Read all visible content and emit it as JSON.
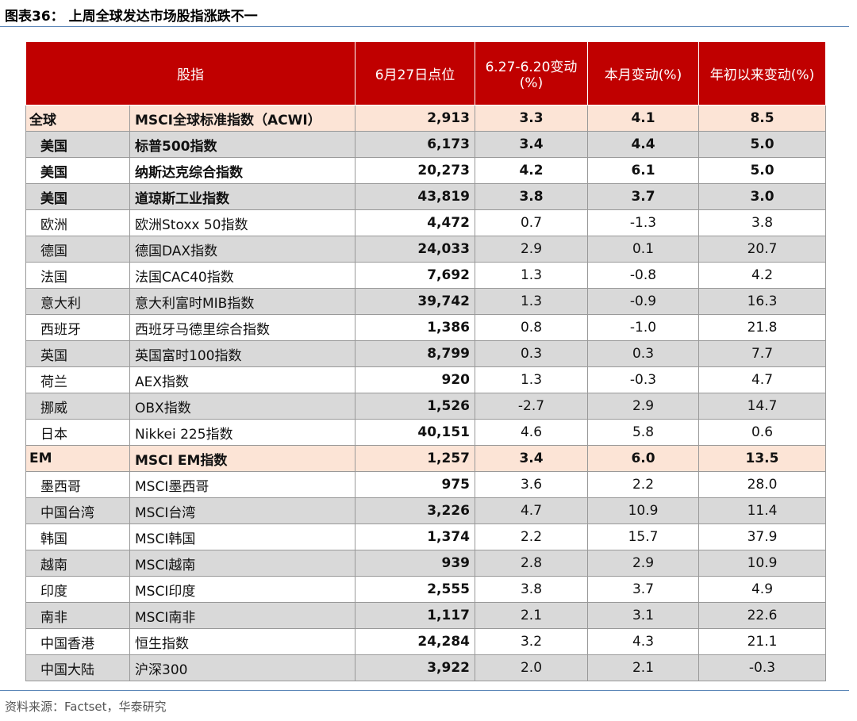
{
  "header": {
    "title": "图表36：  上周全球发达市场股指涨跌不一"
  },
  "table": {
    "columns": [
      "股指",
      "6月27日点位",
      "6.27-6.20变动 (%)",
      "本月变动(%)",
      "年初以来变动(%)"
    ],
    "rows": [
      [
        "全球",
        "MSCI全球标准指数（ACWI）",
        "2,913",
        "3.3",
        "4.1",
        "8.5"
      ],
      [
        "美国",
        "标普500指数",
        "6,173",
        "3.4",
        "4.4",
        "5.0"
      ],
      [
        "美国",
        "纳斯达克综合指数",
        "20,273",
        "4.2",
        "6.1",
        "5.0"
      ],
      [
        "美国",
        "道琼斯工业指数",
        "43,819",
        "3.8",
        "3.7",
        "3.0"
      ],
      [
        "欧洲",
        "欧洲Stoxx 50指数",
        "4,472",
        "0.7",
        "-1.3",
        "3.8"
      ],
      [
        "德国",
        "德国DAX指数",
        "24,033",
        "2.9",
        "0.1",
        "20.7"
      ],
      [
        "法国",
        "法国CAC40指数",
        "7,692",
        "1.3",
        "-0.8",
        "4.2"
      ],
      [
        "意大利",
        "意大利富时MIB指数",
        "39,742",
        "1.3",
        "-0.9",
        "16.3"
      ],
      [
        "西班牙",
        "西班牙马德里综合指数",
        "1,386",
        "0.8",
        "-1.0",
        "21.8"
      ],
      [
        "英国",
        "英国富时100指数",
        "8,799",
        "0.3",
        "0.3",
        "7.7"
      ],
      [
        "荷兰",
        "AEX指数",
        "920",
        "1.3",
        "-0.3",
        "4.7"
      ],
      [
        "挪威",
        "OBX指数",
        "1,526",
        "-2.7",
        "2.9",
        "14.7"
      ],
      [
        "日本",
        "Nikkei 225指数",
        "40,151",
        "4.6",
        "5.8",
        "0.6"
      ],
      [
        "EM",
        "MSCI EM指数",
        "1,257",
        "3.4",
        "6.0",
        "13.5"
      ],
      [
        "墨西哥",
        "MSCI墨西哥",
        "975",
        "3.6",
        "2.2",
        "28.0"
      ],
      [
        "中国台湾",
        "MSCI台湾",
        "3,226",
        "4.7",
        "10.9",
        "11.4"
      ],
      [
        "韩国",
        "MSCI韩国",
        "1,374",
        "2.2",
        "15.7",
        "37.9"
      ],
      [
        "越南",
        "MSCI越南",
        "939",
        "2.8",
        "2.9",
        "10.9"
      ],
      [
        "印度",
        "MSCI印度",
        "2,555",
        "3.8",
        "3.7",
        "4.9"
      ],
      [
        "南非",
        "MSCI南非",
        "1,117",
        "2.1",
        "3.1",
        "22.6"
      ],
      [
        "中国香港",
        "恒生指数",
        "24,284",
        "3.2",
        "4.3",
        "21.1"
      ],
      [
        "中国大陆",
        "沪深300",
        "3,922",
        "2.0",
        "2.1",
        "-0.3"
      ]
    ]
  },
  "footer": {
    "source": "资料来源：Factset，华泰研究"
  }
}
